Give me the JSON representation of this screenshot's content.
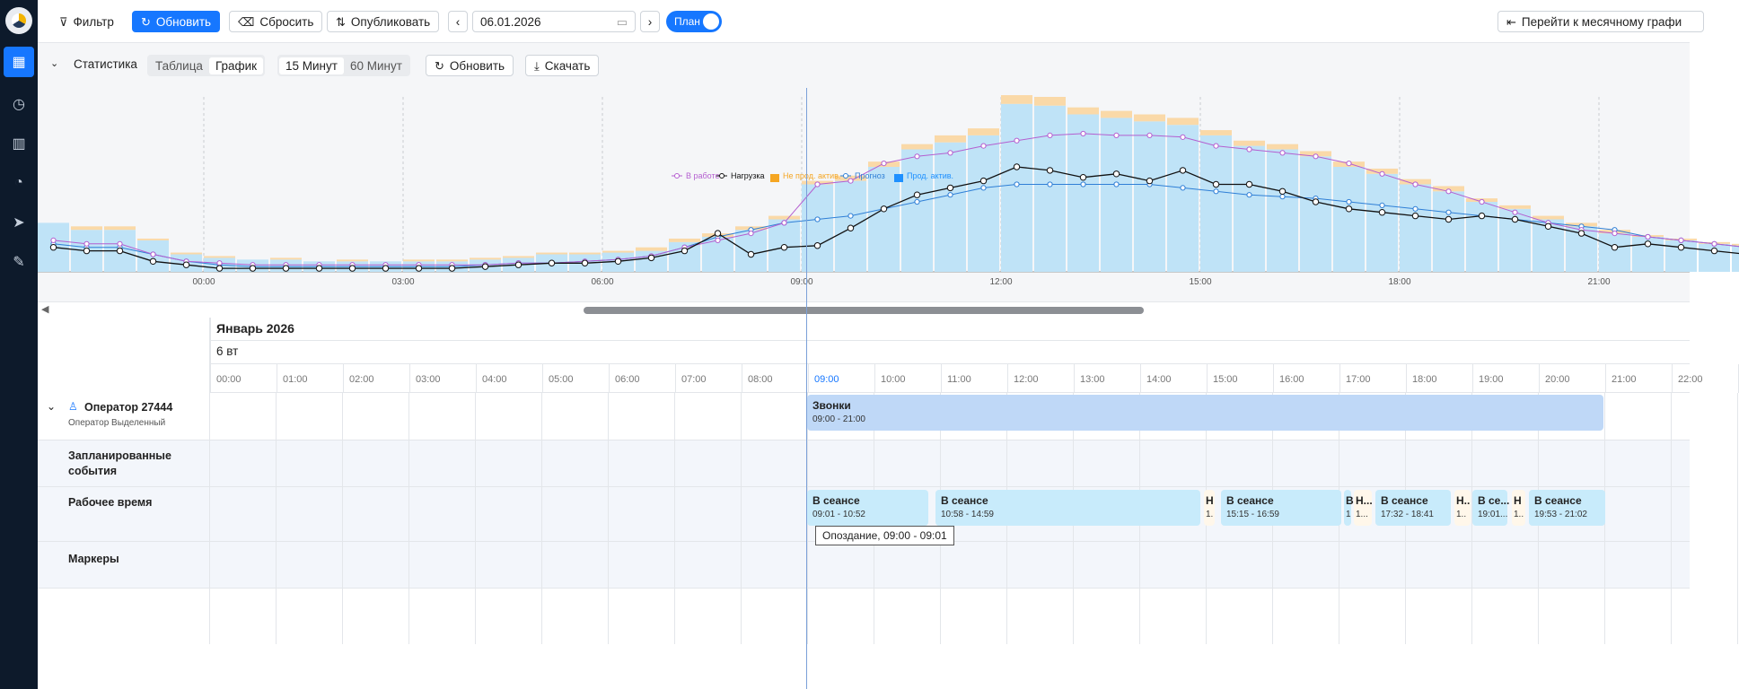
{
  "toolbar": {
    "filter": "Фильтр",
    "refresh": "Обновить",
    "reset": "Сбросить",
    "publish": "Опубликовать",
    "date": "06.01.2026",
    "plan": "План",
    "monthly": "Перейти к месячному графи"
  },
  "stats": {
    "title": "Статистика",
    "view_table": "Таблица",
    "view_chart": "График",
    "int15": "15 Минут",
    "int60": "60 Минут",
    "refresh": "Обновить",
    "download": "Скачать"
  },
  "chart_data": {
    "type": "bar",
    "legend": [
      "В работе",
      "Нагрузка",
      "Не прод. актив.",
      "Прогноз",
      "Прод. актив."
    ],
    "legend_placement": "top-center",
    "colors": {
      "in_work": "#b45fd0",
      "load": "#111111",
      "nonprod": "#f5a623",
      "forecast": "#2f7fd6",
      "prod": "#bfe3f7"
    },
    "x_tick_labels": [
      "00:00",
      "03:00",
      "06:00",
      "09:00",
      "12:00",
      "15:00",
      "18:00",
      "21:00"
    ],
    "x_range": [
      "-02:30",
      "23:00"
    ],
    "x_step_min": 15,
    "ylim": [
      0,
      100
    ],
    "grid": "dashed vertical",
    "series": [
      {
        "name": "Прод. актив.",
        "points": [
          [
            -150,
            28
          ],
          [
            -120,
            24
          ],
          [
            -90,
            24
          ],
          [
            -60,
            18
          ],
          [
            -30,
            10
          ],
          [
            0,
            8
          ],
          [
            30,
            7
          ],
          [
            60,
            7
          ],
          [
            90,
            6
          ],
          [
            120,
            6
          ],
          [
            150,
            6
          ],
          [
            180,
            6
          ],
          [
            210,
            6
          ],
          [
            240,
            7
          ],
          [
            270,
            8
          ],
          [
            300,
            10
          ],
          [
            330,
            10
          ],
          [
            360,
            11
          ],
          [
            390,
            12
          ],
          [
            420,
            17
          ],
          [
            450,
            20
          ],
          [
            480,
            24
          ],
          [
            510,
            30
          ],
          [
            540,
            50
          ],
          [
            570,
            52
          ],
          [
            600,
            60
          ],
          [
            630,
            70
          ],
          [
            660,
            74
          ],
          [
            690,
            78
          ],
          [
            720,
            96
          ],
          [
            750,
            95
          ],
          [
            780,
            90
          ],
          [
            810,
            88
          ],
          [
            840,
            86
          ],
          [
            870,
            84
          ],
          [
            900,
            78
          ],
          [
            930,
            72
          ],
          [
            960,
            70
          ],
          [
            990,
            66
          ],
          [
            1020,
            60
          ],
          [
            1050,
            56
          ],
          [
            1080,
            50
          ],
          [
            1110,
            46
          ],
          [
            1140,
            40
          ],
          [
            1170,
            36
          ],
          [
            1200,
            30
          ],
          [
            1230,
            26
          ],
          [
            1260,
            22
          ],
          [
            1290,
            20
          ],
          [
            1320,
            18
          ],
          [
            1350,
            16
          ],
          [
            1380,
            15
          ]
        ]
      },
      {
        "name": "Не прод. актив.",
        "points": [
          [
            -150,
            0
          ],
          [
            -120,
            2
          ],
          [
            -90,
            2
          ],
          [
            -60,
            1
          ],
          [
            -30,
            1
          ],
          [
            0,
            1
          ],
          [
            30,
            0
          ],
          [
            60,
            1
          ],
          [
            90,
            0
          ],
          [
            120,
            1
          ],
          [
            150,
            0
          ],
          [
            180,
            1
          ],
          [
            210,
            1
          ],
          [
            240,
            1
          ],
          [
            270,
            1
          ],
          [
            300,
            1
          ],
          [
            330,
            1
          ],
          [
            360,
            1
          ],
          [
            390,
            2
          ],
          [
            420,
            2
          ],
          [
            450,
            2
          ],
          [
            480,
            2
          ],
          [
            510,
            2
          ],
          [
            540,
            2
          ],
          [
            570,
            3
          ],
          [
            600,
            3
          ],
          [
            630,
            3
          ],
          [
            660,
            4
          ],
          [
            690,
            4
          ],
          [
            720,
            5
          ],
          [
            750,
            5
          ],
          [
            780,
            4
          ],
          [
            810,
            4
          ],
          [
            840,
            4
          ],
          [
            870,
            4
          ],
          [
            900,
            3
          ],
          [
            930,
            3
          ],
          [
            960,
            3
          ],
          [
            990,
            3
          ],
          [
            1020,
            3
          ],
          [
            1050,
            3
          ],
          [
            1080,
            3
          ],
          [
            1110,
            3
          ],
          [
            1140,
            2
          ],
          [
            1170,
            2
          ],
          [
            1200,
            2
          ],
          [
            1230,
            2
          ],
          [
            1260,
            2
          ],
          [
            1290,
            1
          ],
          [
            1320,
            1
          ],
          [
            1350,
            1
          ],
          [
            1380,
            1
          ]
        ]
      },
      {
        "name": "В работе",
        "points": [
          [
            -150,
            18
          ],
          [
            -120,
            16
          ],
          [
            -90,
            16
          ],
          [
            -60,
            10
          ],
          [
            -30,
            6
          ],
          [
            0,
            5
          ],
          [
            30,
            4
          ],
          [
            60,
            4
          ],
          [
            90,
            4
          ],
          [
            120,
            4
          ],
          [
            150,
            4
          ],
          [
            180,
            4
          ],
          [
            210,
            4
          ],
          [
            240,
            4
          ],
          [
            270,
            5
          ],
          [
            300,
            5
          ],
          [
            330,
            6
          ],
          [
            360,
            7
          ],
          [
            390,
            9
          ],
          [
            420,
            14
          ],
          [
            450,
            18
          ],
          [
            480,
            22
          ],
          [
            510,
            28
          ],
          [
            540,
            50
          ],
          [
            570,
            52
          ],
          [
            600,
            62
          ],
          [
            630,
            66
          ],
          [
            660,
            68
          ],
          [
            690,
            72
          ],
          [
            720,
            75
          ],
          [
            750,
            78
          ],
          [
            780,
            79
          ],
          [
            810,
            78
          ],
          [
            840,
            78
          ],
          [
            870,
            77
          ],
          [
            900,
            72
          ],
          [
            930,
            70
          ],
          [
            960,
            68
          ],
          [
            990,
            66
          ],
          [
            1020,
            62
          ],
          [
            1050,
            56
          ],
          [
            1080,
            50
          ],
          [
            1110,
            46
          ],
          [
            1140,
            40
          ],
          [
            1170,
            34
          ],
          [
            1200,
            28
          ],
          [
            1230,
            24
          ],
          [
            1260,
            22
          ],
          [
            1290,
            20
          ],
          [
            1320,
            18
          ],
          [
            1350,
            16
          ],
          [
            1380,
            14
          ]
        ]
      },
      {
        "name": "Нагрузка",
        "points": [
          [
            -150,
            14
          ],
          [
            -120,
            12
          ],
          [
            -90,
            12
          ],
          [
            -60,
            6
          ],
          [
            -30,
            4
          ],
          [
            0,
            2
          ],
          [
            30,
            2
          ],
          [
            60,
            2
          ],
          [
            90,
            2
          ],
          [
            120,
            2
          ],
          [
            150,
            2
          ],
          [
            180,
            2
          ],
          [
            210,
            2
          ],
          [
            240,
            3
          ],
          [
            270,
            4
          ],
          [
            300,
            5
          ],
          [
            330,
            5
          ],
          [
            360,
            6
          ],
          [
            390,
            8
          ],
          [
            420,
            12
          ],
          [
            450,
            22
          ],
          [
            480,
            10
          ],
          [
            510,
            14
          ],
          [
            540,
            15
          ],
          [
            570,
            25
          ],
          [
            600,
            36
          ],
          [
            630,
            44
          ],
          [
            660,
            48
          ],
          [
            690,
            52
          ],
          [
            720,
            60
          ],
          [
            750,
            58
          ],
          [
            780,
            54
          ],
          [
            810,
            56
          ],
          [
            840,
            52
          ],
          [
            870,
            58
          ],
          [
            900,
            50
          ],
          [
            930,
            50
          ],
          [
            960,
            46
          ],
          [
            990,
            40
          ],
          [
            1020,
            36
          ],
          [
            1050,
            34
          ],
          [
            1080,
            32
          ],
          [
            1110,
            30
          ],
          [
            1140,
            32
          ],
          [
            1170,
            30
          ],
          [
            1200,
            26
          ],
          [
            1230,
            22
          ],
          [
            1260,
            14
          ],
          [
            1290,
            16
          ],
          [
            1320,
            14
          ],
          [
            1350,
            12
          ],
          [
            1380,
            10
          ]
        ]
      },
      {
        "name": "Прогноз",
        "points": [
          [
            -150,
            16
          ],
          [
            -120,
            14
          ],
          [
            -90,
            14
          ],
          [
            -60,
            10
          ],
          [
            -30,
            6
          ],
          [
            0,
            4
          ],
          [
            30,
            3
          ],
          [
            60,
            3
          ],
          [
            90,
            3
          ],
          [
            120,
            3
          ],
          [
            150,
            3
          ],
          [
            180,
            3
          ],
          [
            210,
            3
          ],
          [
            240,
            4
          ],
          [
            270,
            5
          ],
          [
            300,
            5
          ],
          [
            330,
            6
          ],
          [
            360,
            7
          ],
          [
            390,
            9
          ],
          [
            420,
            14
          ],
          [
            450,
            20
          ],
          [
            480,
            24
          ],
          [
            510,
            28
          ],
          [
            540,
            30
          ],
          [
            570,
            32
          ],
          [
            600,
            36
          ],
          [
            630,
            40
          ],
          [
            660,
            44
          ],
          [
            690,
            48
          ],
          [
            720,
            50
          ],
          [
            750,
            50
          ],
          [
            780,
            50
          ],
          [
            810,
            50
          ],
          [
            840,
            50
          ],
          [
            870,
            48
          ],
          [
            900,
            46
          ],
          [
            930,
            44
          ],
          [
            960,
            43
          ],
          [
            990,
            42
          ],
          [
            1020,
            40
          ],
          [
            1050,
            38
          ],
          [
            1080,
            36
          ],
          [
            1110,
            34
          ],
          [
            1140,
            32
          ],
          [
            1170,
            30
          ],
          [
            1200,
            28
          ],
          [
            1230,
            26
          ],
          [
            1260,
            24
          ],
          [
            1290,
            20
          ],
          [
            1320,
            18
          ],
          [
            1350,
            16
          ],
          [
            1380,
            14
          ]
        ]
      }
    ]
  },
  "timeline": {
    "month": "Январь 2026",
    "day": "6 вт",
    "hours": [
      "00:00",
      "01:00",
      "02:00",
      "03:00",
      "04:00",
      "05:00",
      "06:00",
      "07:00",
      "08:00",
      "09:00",
      "10:00",
      "11:00",
      "12:00",
      "13:00",
      "14:00",
      "15:00",
      "16:00",
      "17:00",
      "18:00",
      "19:00",
      "20:00",
      "21:00",
      "22:00"
    ],
    "current_hour": "09:00",
    "operator": {
      "name": "Оператор 27444",
      "sub": "Оператор Выделенный"
    },
    "rows": {
      "planned": "Запланированные события",
      "worktime": "Рабочее время",
      "markers": "Маркеры"
    },
    "calls": {
      "title": "Звонки",
      "time": "09:00 - 21:00"
    },
    "sessions": [
      {
        "title": "В сеансе",
        "time": "09:01 - 10:52"
      },
      {
        "title": "В сеансе",
        "time": "10:58 - 14:59"
      },
      {
        "title": "Н",
        "time": "1."
      },
      {
        "title": "В сеансе",
        "time": "15:15 - 16:59"
      },
      {
        "title": "В",
        "time": "1"
      },
      {
        "title": "Н...",
        "time": "1..."
      },
      {
        "title": "В сеансе",
        "time": "17:32 - 18:41"
      },
      {
        "title": "Н..",
        "time": "1.."
      },
      {
        "title": "В се...",
        "time": "19:01..."
      },
      {
        "title": "Н",
        "time": "1.."
      },
      {
        "title": "В сеансе",
        "time": "19:53 - 21:02"
      }
    ],
    "tooltip": "Опоздание, 09:00 - 09:01"
  }
}
